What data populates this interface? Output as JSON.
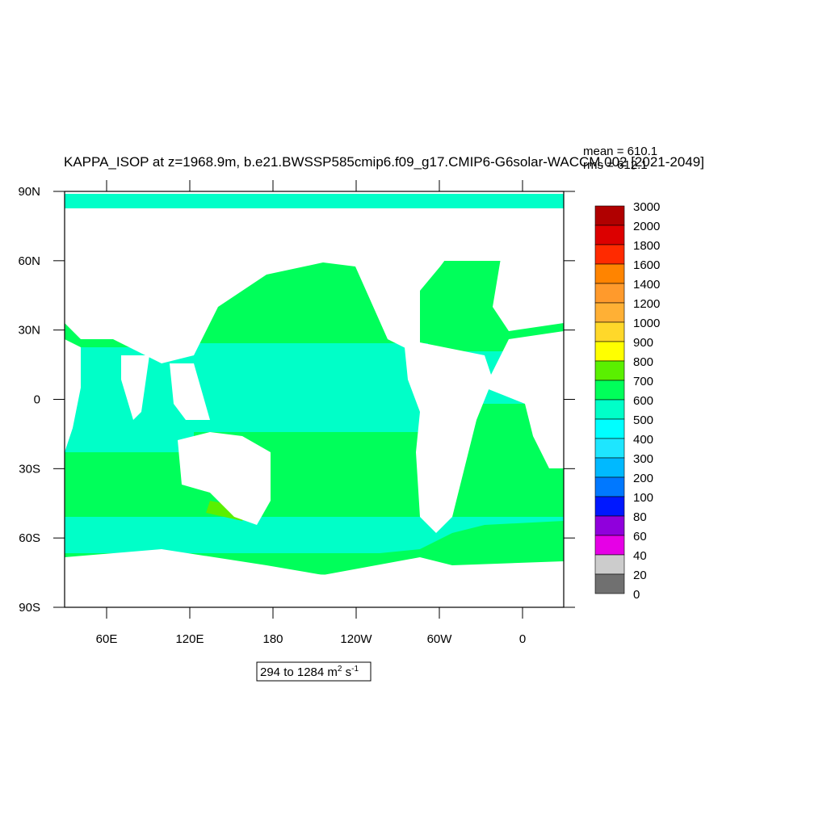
{
  "title": "KAPPA_ISOP at z=1968.9m, b.e21.BWSSP585cmip6.f09_g17.CMIP6-G6solar-WACCM.002 [2021-2049]",
  "stats": {
    "mean": "mean = 610.1",
    "rms": "rms = 612.1"
  },
  "lat_labels": [
    "90N",
    "60N",
    "30N",
    "0",
    "30S",
    "60S",
    "90S"
  ],
  "lon_labels": [
    "60E",
    "120E",
    "180",
    "120W",
    "60W",
    "0"
  ],
  "colorbar": {
    "levels": [
      3000,
      2000,
      1800,
      1600,
      1400,
      1200,
      1000,
      900,
      800,
      700,
      600,
      500,
      400,
      300,
      200,
      100,
      80,
      60,
      40,
      20,
      0
    ],
    "colors": [
      "#b00000",
      "#dc0000",
      "#ff2a00",
      "#ff8400",
      "#ff9a2c",
      "#ffb035",
      "#ffd82a",
      "#ffff00",
      "#5af000",
      "#00ff5a",
      "#00ffc8",
      "#00ffff",
      "#1ee6ff",
      "#00b9ff",
      "#0078ff",
      "#0018ff",
      "#9000dc",
      "#e600e6",
      "#cccccc",
      "#707070"
    ]
  },
  "range_label": {
    "text": "294 to 1284 m",
    "sup1": "2",
    "mid": " s",
    "sup2": "-1"
  }
}
